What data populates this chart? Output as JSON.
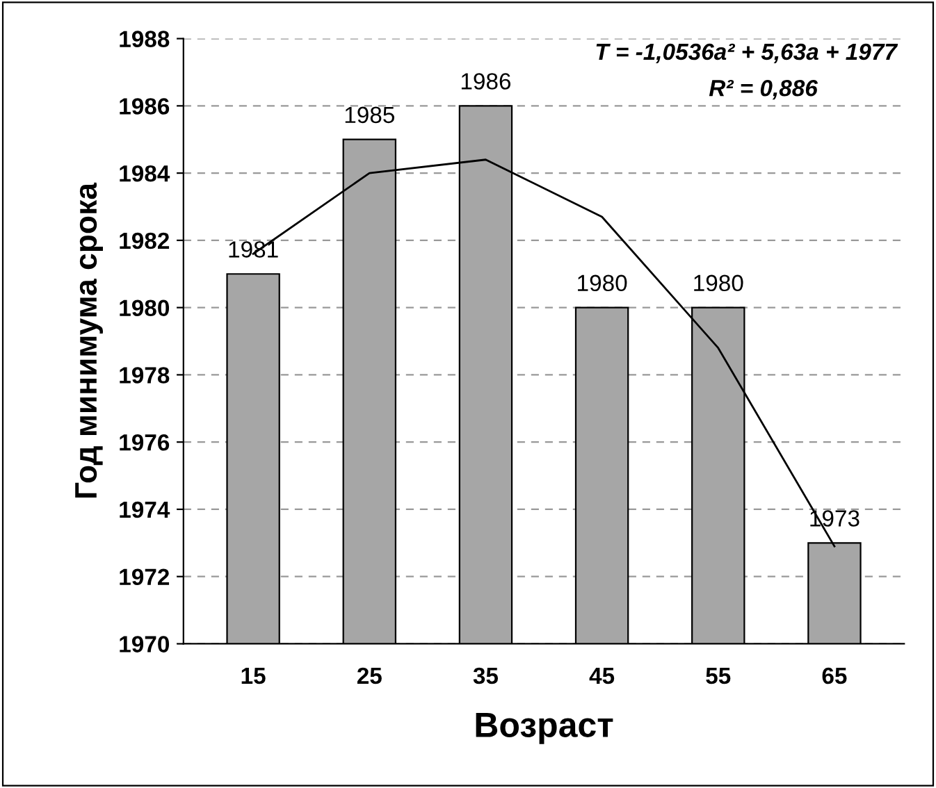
{
  "chart_data": {
    "type": "bar",
    "xlabel": "Возраст",
    "ylabel": "Год минимума срока",
    "categories": [
      "15",
      "25",
      "35",
      "45",
      "55",
      "65"
    ],
    "series": [
      {
        "color": "#a6a6a6",
        "values": [
          1981,
          1985,
          1986,
          1980,
          1980,
          1973
        ],
        "value_labels": [
          "1981",
          "1985",
          "1986",
          "1980",
          "1980",
          "1973"
        ]
      },
      {
        "type": "line",
        "color": "#000000",
        "values": [
          1981.6,
          1984.0,
          1984.4,
          1982.7,
          1978.8,
          1972.9
        ]
      }
    ],
    "ylim": [
      1970,
      1988
    ],
    "yticks": [
      1970,
      1972,
      1974,
      1976,
      1978,
      1980,
      1982,
      1984,
      1986,
      1988
    ],
    "grid": "y",
    "line_style": "solid",
    "annotations": [
      "T = -1,0536a² + 5,63a + 1977",
      "R² = 0,886"
    ]
  }
}
